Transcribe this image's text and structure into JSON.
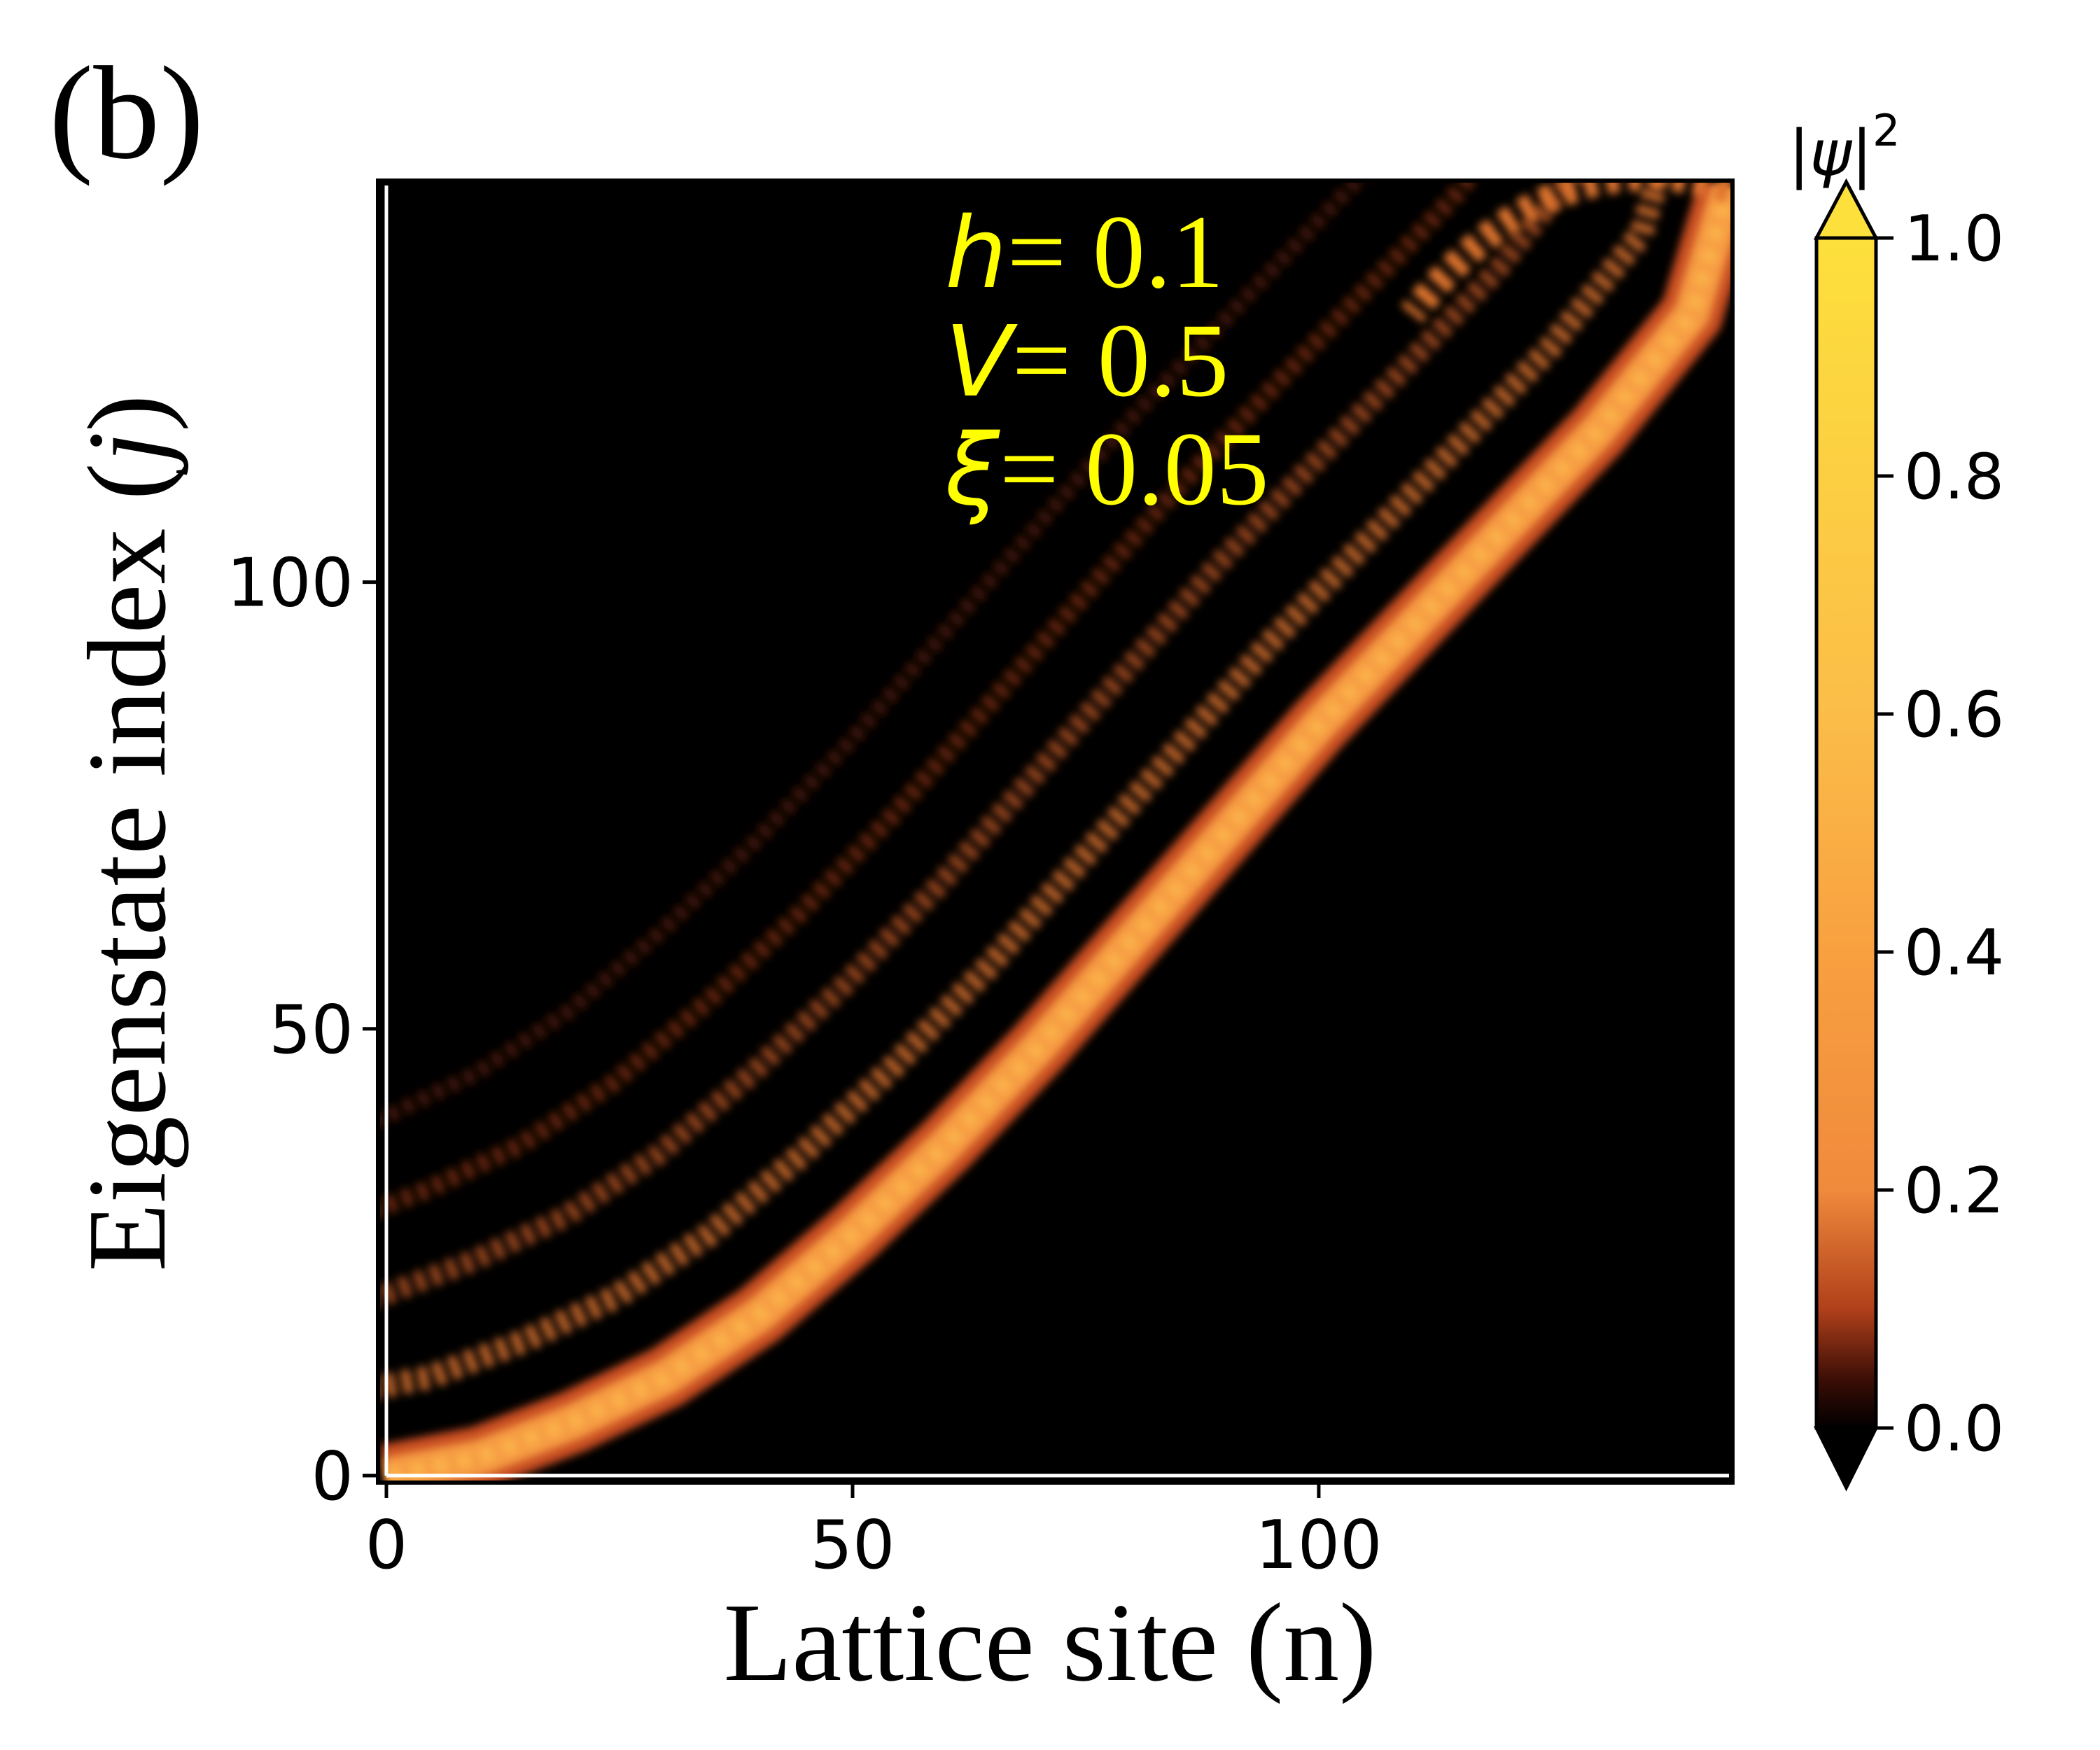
{
  "panel_label": "(b)",
  "chart_data": {
    "type": "heatmap",
    "title": "",
    "xlabel": "Lattice site (n)",
    "ylabel_prefix": "Eigenstate index (",
    "ylabel_var": "j",
    "ylabel_suffix": ")",
    "xlim": [
      0,
      144
    ],
    "ylim": [
      0,
      144
    ],
    "xticks": [
      0,
      50,
      100
    ],
    "yticks": [
      0,
      50,
      100
    ],
    "colorbar": {
      "label_var": "ψ",
      "label_exp": "2",
      "range": [
        0.0,
        1.0
      ],
      "ticks": [
        "0.0",
        "0.2",
        "0.4",
        "0.6",
        "0.8",
        "1.0"
      ],
      "tick_values": [
        0.0,
        0.2,
        0.4,
        0.6,
        0.8,
        1.0
      ],
      "extend": "both",
      "colors": [
        "#000000",
        "#3a0d06",
        "#b0401a",
        "#f08a3c",
        "#f8a040",
        "#fbbd48",
        "#fde03c"
      ]
    },
    "annotations": [
      {
        "var": "h",
        "text": "= 0.1"
      },
      {
        "var": "V",
        "text": "= 0.5"
      },
      {
        "var": "ξ",
        "text": "= 0.05"
      }
    ],
    "annotation_color": "#ffff00",
    "background_color": "#000000",
    "main_band": [
      [
        0,
        0
      ],
      [
        10,
        2
      ],
      [
        20,
        6
      ],
      [
        30,
        11
      ],
      [
        40,
        18
      ],
      [
        50,
        27
      ],
      [
        60,
        37
      ],
      [
        70,
        48
      ],
      [
        80,
        60
      ],
      [
        90,
        72
      ],
      [
        100,
        84
      ],
      [
        110,
        95
      ],
      [
        120,
        106
      ],
      [
        130,
        117
      ],
      [
        140,
        130
      ],
      [
        144,
        144
      ]
    ],
    "peak_intensity": 0.6
  }
}
